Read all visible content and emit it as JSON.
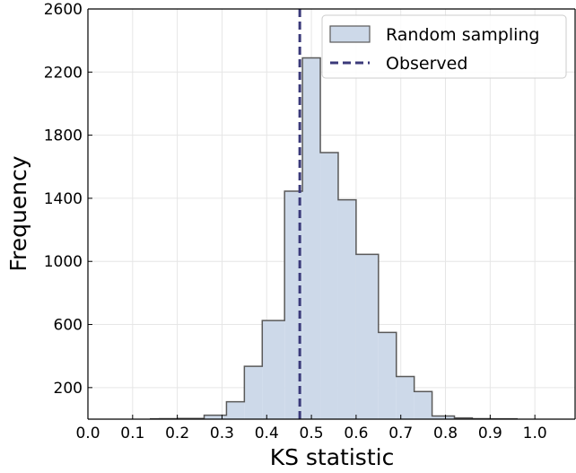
{
  "chart_data": {
    "type": "bar",
    "subtype": "histogram",
    "xlabel": "KS statistic",
    "ylabel": "Frequency",
    "xlim": [
      0.0,
      1.09
    ],
    "ylim": [
      0,
      2600
    ],
    "xticks": [
      0.0,
      0.1,
      0.2,
      0.3,
      0.4,
      0.5,
      0.6,
      0.7,
      0.8,
      0.9,
      1.0
    ],
    "xtick_labels": [
      "0.0",
      "0.1",
      "0.2",
      "0.3",
      "0.4",
      "0.5",
      "0.6",
      "0.7",
      "0.8",
      "0.9",
      "1.0"
    ],
    "yticks": [
      200,
      600,
      1000,
      1400,
      1800,
      2200,
      2600
    ],
    "ytick_labels": [
      "200",
      "600",
      "1000",
      "1400",
      "1800",
      "2200",
      "2600"
    ],
    "grid": true,
    "legend_position": "top-right",
    "bins": [
      {
        "x0": 0.14,
        "x1": 0.16,
        "count": 2
      },
      {
        "x0": 0.16,
        "x1": 0.2,
        "count": 3
      },
      {
        "x0": 0.2,
        "x1": 0.26,
        "count": 4
      },
      {
        "x0": 0.26,
        "x1": 0.31,
        "count": 25
      },
      {
        "x0": 0.31,
        "x1": 0.35,
        "count": 110
      },
      {
        "x0": 0.35,
        "x1": 0.39,
        "count": 335
      },
      {
        "x0": 0.39,
        "x1": 0.44,
        "count": 625
      },
      {
        "x0": 0.44,
        "x1": 0.48,
        "count": 1445
      },
      {
        "x0": 0.48,
        "x1": 0.52,
        "count": 2290
      },
      {
        "x0": 0.52,
        "x1": 0.56,
        "count": 1690
      },
      {
        "x0": 0.56,
        "x1": 0.6,
        "count": 1390
      },
      {
        "x0": 0.6,
        "x1": 0.65,
        "count": 1045
      },
      {
        "x0": 0.65,
        "x1": 0.69,
        "count": 550
      },
      {
        "x0": 0.69,
        "x1": 0.73,
        "count": 270
      },
      {
        "x0": 0.73,
        "x1": 0.77,
        "count": 175
      },
      {
        "x0": 0.77,
        "x1": 0.82,
        "count": 20
      },
      {
        "x0": 0.82,
        "x1": 0.86,
        "count": 8
      },
      {
        "x0": 0.86,
        "x1": 0.9,
        "count": 3
      },
      {
        "x0": 0.9,
        "x1": 0.96,
        "count": 2
      }
    ],
    "observed": 0.474,
    "series": [
      {
        "name": "Random sampling",
        "kind": "histogram",
        "fill": "#cdd9e9",
        "edge": "#595959"
      },
      {
        "name": "Observed",
        "kind": "vline",
        "color": "#3b3a7a",
        "style": "dashed"
      }
    ]
  }
}
